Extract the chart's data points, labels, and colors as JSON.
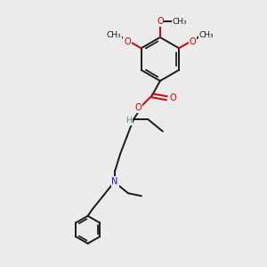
{
  "bg_color": "#ebebeb",
  "bond_color": "#1a1a1a",
  "oxygen_color": "#cc0000",
  "nitrogen_color": "#1414cc",
  "hydrogen_color": "#4a9090",
  "line_width": 1.4,
  "font_size": 7.0,
  "xlim": [
    0,
    10
  ],
  "ylim": [
    0,
    10
  ]
}
